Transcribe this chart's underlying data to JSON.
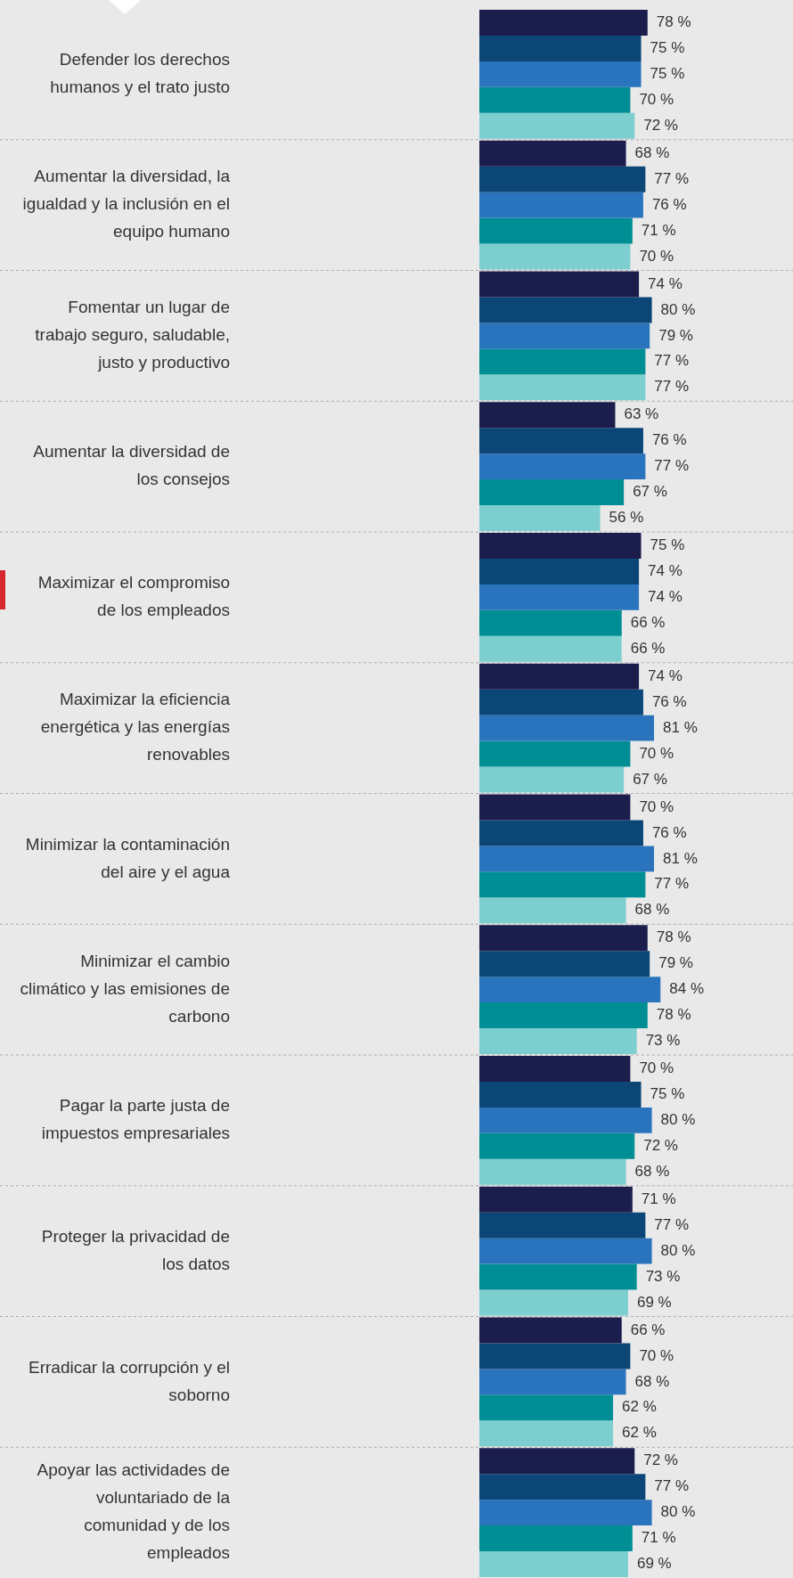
{
  "chart_data": {
    "type": "bar",
    "orientation": "horizontal",
    "categories": [
      "Defender los derechos humanos y el trato justo",
      "Aumentar la diversidad, la igualdad y la inclusión en el equipo humano",
      "Fomentar un lugar de trabajo seguro, saludable, justo y productivo",
      "Aumentar la diversidad de los consejos",
      "Maximizar el compromiso de los empleados",
      "Maximizar la eficiencia energética y las energías renovables",
      "Minimizar la contaminación del aire y el agua",
      "Minimizar el cambio climático y las emisiones de carbono",
      "Pagar la parte justa de impuestos empresariales",
      "Proteger la privacidad de los datos",
      "Erradicar la corrupción y el soborno",
      "Apoyar las actividades de voluntariado de la comunidad y de los empleados"
    ],
    "series": [
      {
        "color": "#1b1d4d",
        "values": [
          78,
          68,
          74,
          63,
          75,
          74,
          70,
          78,
          70,
          71,
          66,
          72
        ],
        "value_labels": [
          "78 %",
          "68 %",
          "74 %",
          "63 %",
          "75 %",
          "74 %",
          "70 %",
          "78 %",
          "70 %",
          "71 %",
          "66 %",
          "72 %"
        ]
      },
      {
        "color": "#0b4677",
        "values": [
          75,
          77,
          80,
          76,
          74,
          76,
          76,
          79,
          75,
          77,
          70,
          77
        ],
        "value_labels": [
          "75 %",
          "77 %",
          "80 %",
          "76 %",
          "74 %",
          "76 %",
          "76 %",
          "79 %",
          "75 %",
          "77 %",
          "70 %",
          "77 %"
        ]
      },
      {
        "color": "#2a74be",
        "values": [
          75,
          76,
          79,
          77,
          74,
          81,
          81,
          84,
          80,
          80,
          68,
          80
        ],
        "value_labels": [
          "75 %",
          "76 %",
          "79 %",
          "77 %",
          "74 %",
          "81 %",
          "81 %",
          "84 %",
          "80 %",
          "80 %",
          "68 %",
          "80 %"
        ]
      },
      {
        "color": "#008e95",
        "values": [
          70,
          71,
          77,
          67,
          66,
          70,
          77,
          78,
          72,
          73,
          62,
          71
        ],
        "value_labels": [
          "70 %",
          "71 %",
          "77 %",
          "67 %",
          "66 %",
          "70 %",
          "77 %",
          "78 %",
          "72 %",
          "73 %",
          "62 %",
          "71 %"
        ]
      },
      {
        "color": "#7dcfcf",
        "values": [
          72,
          70,
          77,
          56,
          66,
          67,
          68,
          73,
          68,
          69,
          62,
          69
        ],
        "value_labels": [
          "72 %",
          "70 %",
          "77 %",
          "56 %",
          "66 %",
          "67 %",
          "68 %",
          "73 %",
          "68 %",
          "69 %",
          "62 %",
          "69 %"
        ]
      }
    ]
  }
}
